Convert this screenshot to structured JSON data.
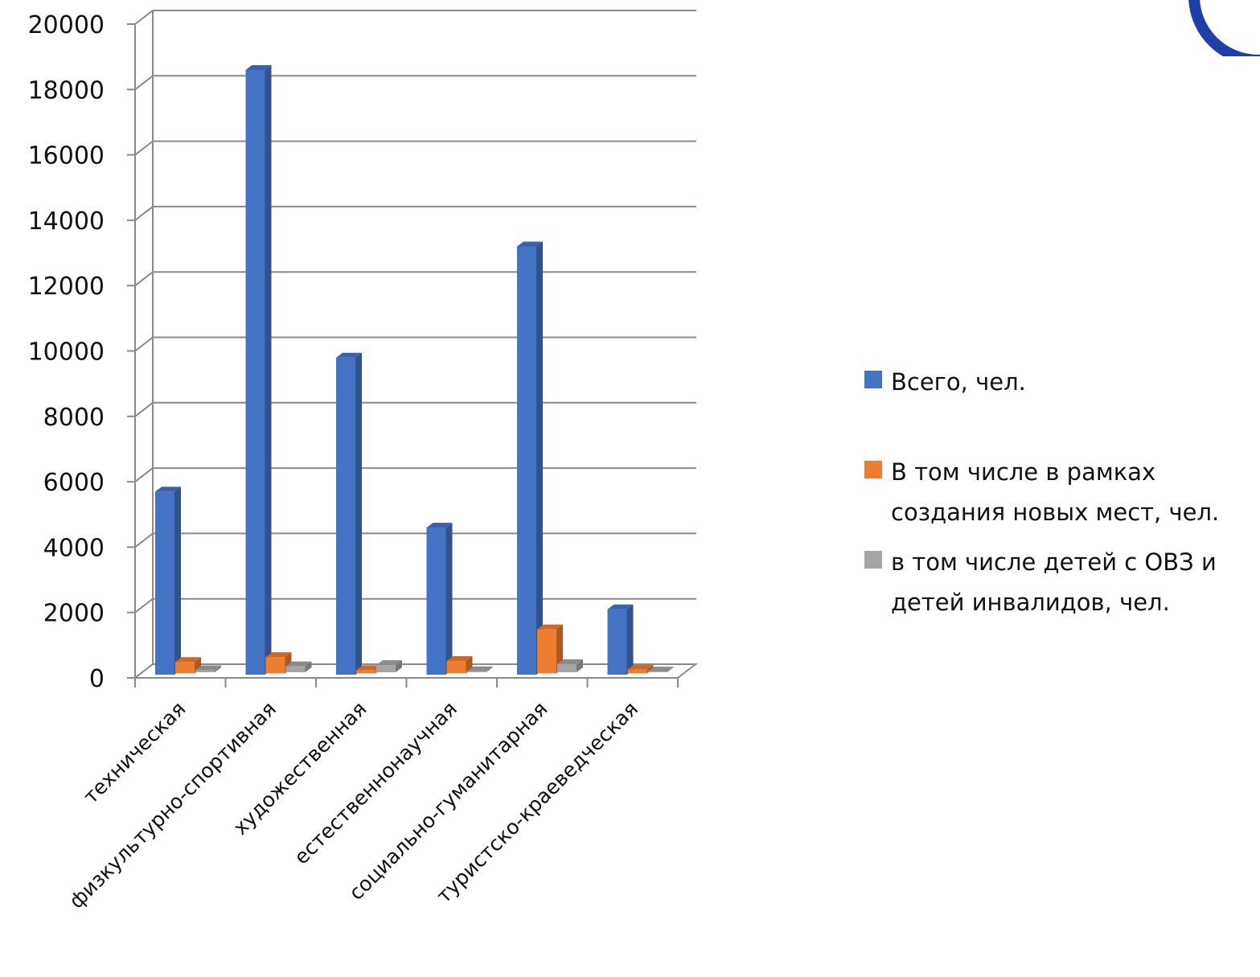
{
  "chart_data": {
    "type": "bar",
    "title": "",
    "xlabel": "",
    "ylabel": "",
    "ylim": [
      0,
      20000
    ],
    "yticks": [
      "0",
      "2000",
      "4000",
      "6000",
      "8000",
      "10000",
      "12000",
      "14000",
      "16000",
      "18000",
      "20000"
    ],
    "categories": [
      "техническая",
      "физкультурно-спортивная",
      "художественная",
      "естественнонаучная",
      "социально-гуманитарная",
      "туристско-краеведческая"
    ],
    "series": [
      {
        "name": "Всего, чел.",
        "color": "#4472C4",
        "values": [
          5600,
          18500,
          9700,
          4500,
          13100,
          2000
        ]
      },
      {
        "name": "В том числе в рамках создания новых мест, чел.",
        "color": "#ED7D31",
        "values": [
          350,
          500,
          100,
          380,
          1350,
          120
        ]
      },
      {
        "name": "в том числе детей  с ОВЗ и детей инвалидов, чел.",
        "color": "#A5A5A5",
        "values": [
          60,
          180,
          220,
          30,
          250,
          20
        ]
      }
    ],
    "legend_position": "right",
    "grid": true
  },
  "legend": {
    "items": [
      {
        "label": "Всего, чел."
      },
      {
        "label": "В том числе в рамках создания новых мест, чел."
      },
      {
        "label": "в том числе детей  с ОВЗ и детей инвалидов, чел."
      }
    ]
  },
  "logo": {
    "icon": "logo-circle-icon",
    "color": "#1F3FA8"
  }
}
